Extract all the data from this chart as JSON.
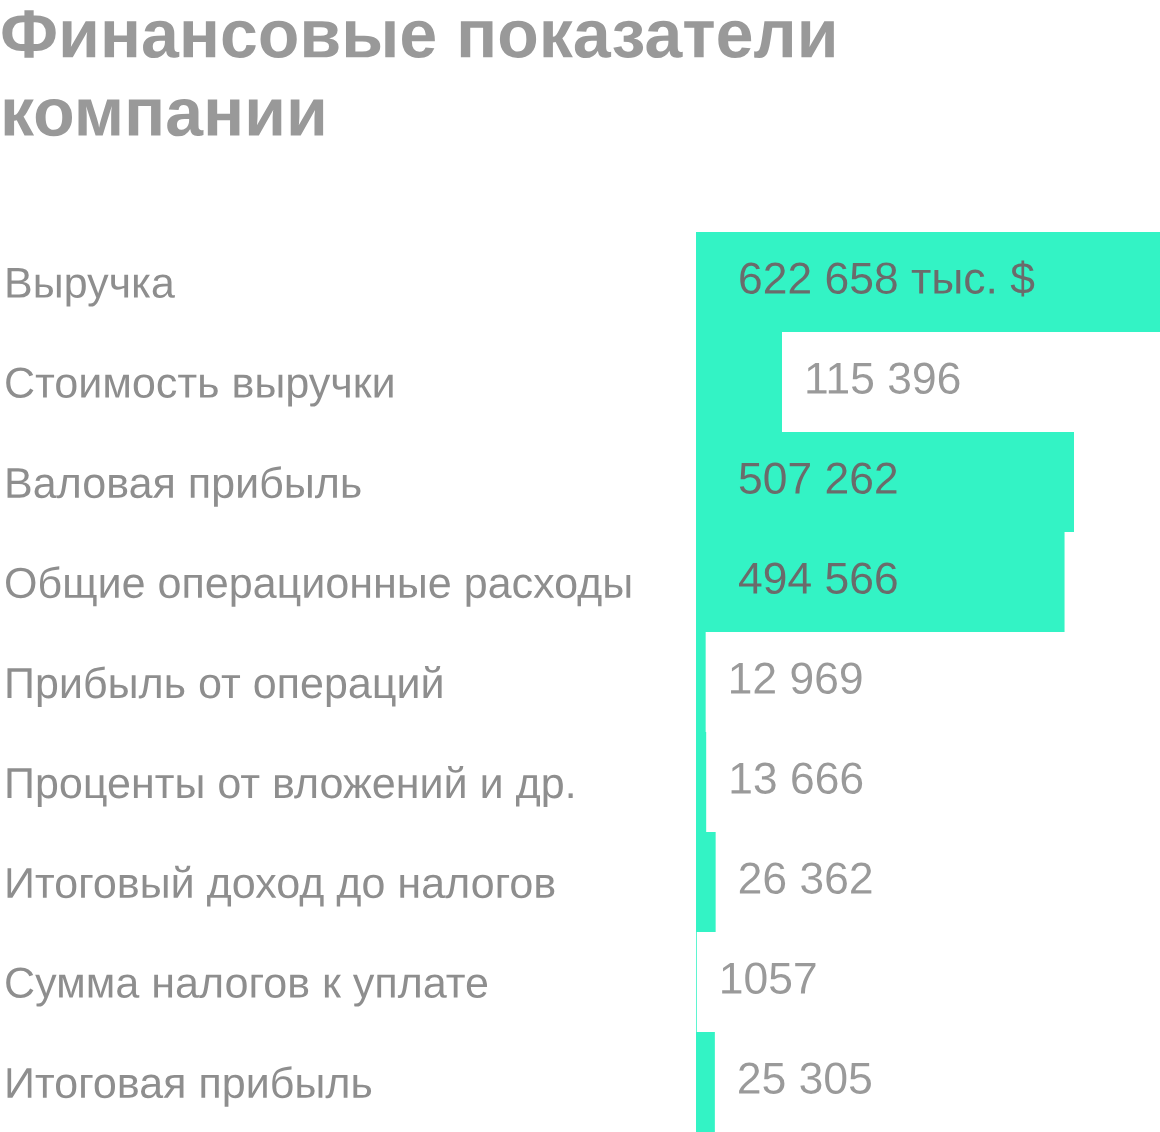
{
  "chart_data": {
    "type": "bar",
    "orientation": "horizontal",
    "title": "Финансовые показатели компании",
    "categories": [
      "Выручка",
      "Стоимость выручки",
      "Валовая прибыль",
      "Общие операционные расходы",
      "Прибыль от операций",
      "Проценты от вложений и др.",
      "Итоговый доход до налогов",
      "Сумма налогов к уплате",
      "Итоговая прибыль"
    ],
    "values": [
      622658,
      115396,
      507262,
      494566,
      12969,
      13666,
      26362,
      1057,
      25305
    ],
    "value_labels": [
      "622 658 тыс. $",
      "115 396",
      "507 262",
      "494 566",
      "12 969",
      "13 666",
      "26 362",
      "1057",
      "25 305"
    ],
    "color": "#33f3c5",
    "tick_labels": "y"
  }
}
